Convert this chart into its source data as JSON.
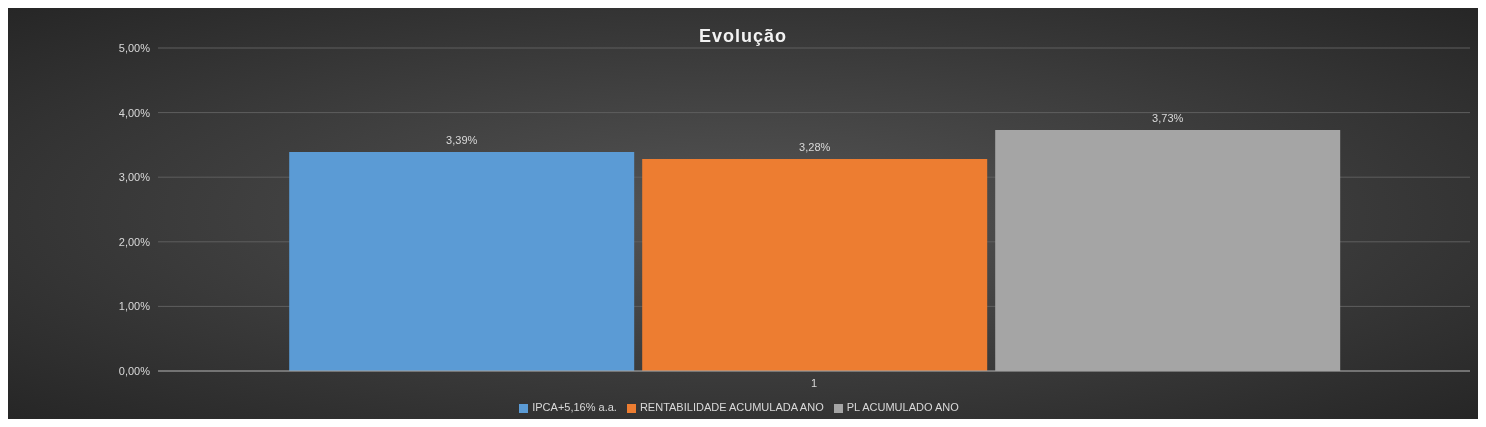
{
  "chart_data": {
    "type": "bar",
    "title": "Evolução",
    "categories": [
      "1"
    ],
    "series": [
      {
        "name": "IPCA+5,16% a.a.",
        "color": "#5b9bd5",
        "values": [
          3.39
        ],
        "value_labels": [
          "3,39%"
        ]
      },
      {
        "name": "RENTABILIDADE ACUMULADA ANO",
        "color": "#ed7d31",
        "values": [
          3.28
        ],
        "value_labels": [
          "3,28%"
        ]
      },
      {
        "name": "PL ACUMULADO ANO",
        "color": "#a5a5a5",
        "values": [
          3.73
        ],
        "value_labels": [
          "3,73%"
        ]
      }
    ],
    "ylim": [
      0,
      5
    ],
    "yticks": [
      {
        "value": 0,
        "label": "0,00%"
      },
      {
        "value": 1,
        "label": "1,00%"
      },
      {
        "value": 2,
        "label": "2,00%"
      },
      {
        "value": 3,
        "label": "3,00%"
      },
      {
        "value": 4,
        "label": "4,00%"
      },
      {
        "value": 5,
        "label": "5,00%"
      }
    ],
    "grid": "y",
    "legend": "bottom"
  }
}
